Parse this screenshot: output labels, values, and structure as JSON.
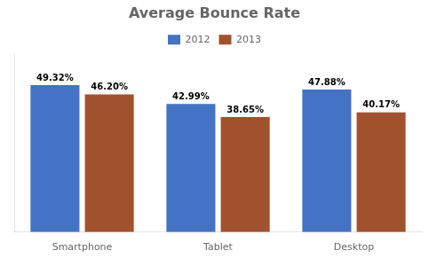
{
  "chart_data": {
    "type": "bar",
    "title": "Average Bounce Rate",
    "categories": [
      "Smartphone",
      "Tablet",
      "Desktop"
    ],
    "series": [
      {
        "name": "2012",
        "color": "#4472C4",
        "values": [
          49.32,
          42.99,
          47.88
        ],
        "value_labels": [
          "49.32%",
          "42.99%",
          "47.88%"
        ]
      },
      {
        "name": "2013",
        "color": "#A0522D",
        "values": [
          46.2,
          38.65,
          40.17
        ],
        "value_labels": [
          "46.20%",
          "38.65%",
          "40.17%"
        ]
      }
    ],
    "ylim": [
      0,
      60
    ],
    "grid": false,
    "legend": "top",
    "data_labels": true,
    "tick_labels": "x"
  }
}
